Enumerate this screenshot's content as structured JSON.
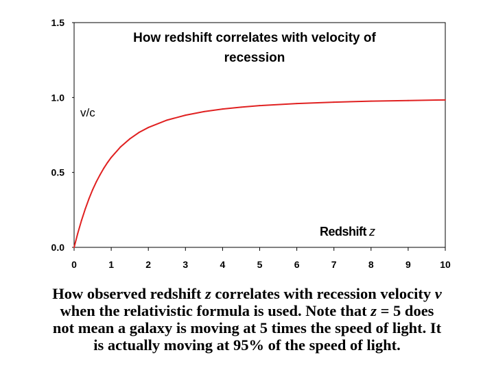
{
  "chart_data": {
    "type": "line",
    "title_lines": [
      "How redshift correlates with velocity of",
      "recession"
    ],
    "ylabel": "v/c",
    "xlabel_word": "Redshift",
    "xlabel_var": "z",
    "xlim": [
      0,
      10
    ],
    "ylim": [
      0,
      1.5
    ],
    "x_ticks": [
      "0",
      "1",
      "2",
      "3",
      "4",
      "5",
      "6",
      "7",
      "8",
      "9",
      "10"
    ],
    "y_ticks": [
      "0.0",
      "0.5",
      "1.0",
      "1.5"
    ],
    "grid": false,
    "series": [
      {
        "name": "v/c",
        "color": "#e02020",
        "x": [
          0,
          0.1,
          0.2,
          0.3,
          0.4,
          0.5,
          0.6,
          0.7,
          0.8,
          0.9,
          1.0,
          1.25,
          1.5,
          1.75,
          2.0,
          2.5,
          3.0,
          3.5,
          4.0,
          4.5,
          5.0,
          6.0,
          7.0,
          8.0,
          9.0,
          10.0
        ],
        "y": [
          0,
          0.095,
          0.18,
          0.256,
          0.324,
          0.385,
          0.438,
          0.485,
          0.528,
          0.566,
          0.6,
          0.67,
          0.724,
          0.767,
          0.8,
          0.849,
          0.882,
          0.906,
          0.923,
          0.936,
          0.946,
          0.96,
          0.969,
          0.976,
          0.98,
          0.984
        ]
      }
    ]
  },
  "caption": {
    "l1a": "How observed redshift ",
    "l1b": "z",
    "l1c": " correlates with recession velocity ",
    "l1d": "v",
    "l2a": "when the relativistic formula is used. Note that ",
    "l2b": "z",
    "l2c": " = 5 does",
    "l3": "not mean a galaxy is moving at 5 times the speed of light. It",
    "l4": "is actually moving at 95% of the speed of light."
  }
}
